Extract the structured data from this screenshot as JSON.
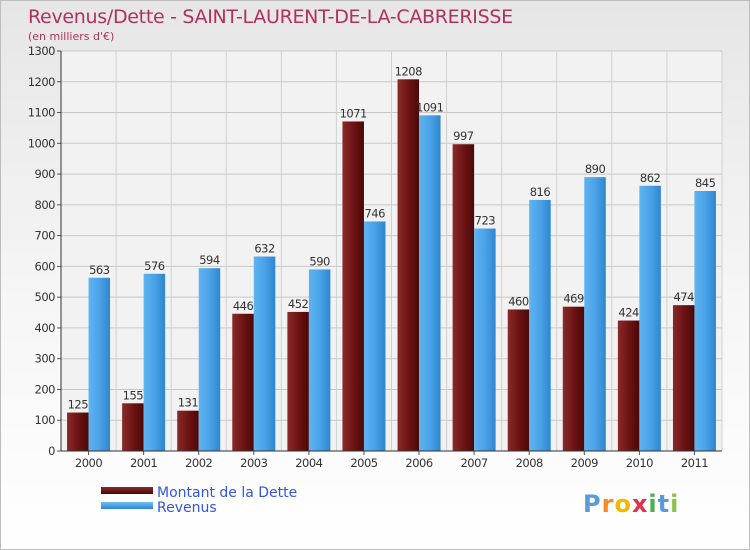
{
  "chart_data": {
    "type": "bar",
    "title": "Revenus/Dette - SAINT-LAURENT-DE-LA-CABRERISSE",
    "subtitle": "(en milliers d'€)",
    "categories": [
      "2000",
      "2001",
      "2002",
      "2003",
      "2004",
      "2005",
      "2006",
      "2007",
      "2008",
      "2009",
      "2010",
      "2011"
    ],
    "series": [
      {
        "name": "Montant de la Dette",
        "color": "#7a1a1a",
        "values": [
          125,
          155,
          131,
          446,
          452,
          1071,
          1208,
          997,
          460,
          469,
          424,
          474
        ]
      },
      {
        "name": "Revenus",
        "color": "#4aa3e8",
        "values": [
          563,
          576,
          594,
          632,
          590,
          746,
          1091,
          723,
          816,
          890,
          862,
          845
        ]
      }
    ],
    "ylim": [
      0,
      1300
    ],
    "yticks": [
      0,
      100,
      200,
      300,
      400,
      500,
      600,
      700,
      800,
      900,
      1000,
      1100,
      1200,
      1300
    ],
    "grid": true,
    "legend_position": "bottom-left"
  },
  "branding": {
    "logo_letters": [
      "P",
      "r",
      "o",
      "x",
      "i",
      "t",
      "i"
    ],
    "logo_colors": [
      "#5b9bd5",
      "#f28c28",
      "#f2b700",
      "#e0324a",
      "#4caf50",
      "#5b9bd5",
      "#8bc34a"
    ]
  }
}
